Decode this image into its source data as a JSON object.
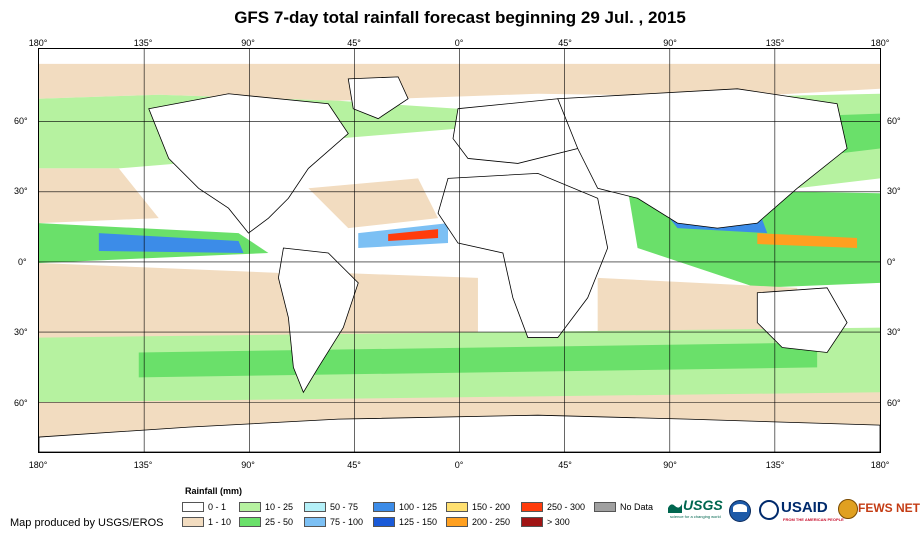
{
  "title": "GFS 7-day total rainfall forecast beginning 29 Jul. , 2015",
  "lon_labels": [
    "180°",
    "135°",
    "90°",
    "45°",
    "0°",
    "45°",
    "90°",
    "135°",
    "180°"
  ],
  "lat_labels": [
    "60°",
    "30°",
    "0°",
    "30°",
    "60°"
  ],
  "legend": {
    "title": "Rainfall (mm)",
    "items": [
      {
        "label": "0 - 1",
        "color": "#ffffff"
      },
      {
        "label": "1 - 10",
        "color": "#f2dcc0"
      },
      {
        "label": "10 - 25",
        "color": "#b6f2a0"
      },
      {
        "label": "25 - 50",
        "color": "#6ae06a"
      },
      {
        "label": "50 - 75",
        "color": "#b4f0f8"
      },
      {
        "label": "75 - 100",
        "color": "#7cc0f4"
      },
      {
        "label": "100 - 125",
        "color": "#3c8ce8"
      },
      {
        "label": "125 - 150",
        "color": "#1a5ad8"
      },
      {
        "label": "150 - 200",
        "color": "#ffe070"
      },
      {
        "label": "200 - 250",
        "color": "#ffa020"
      },
      {
        "label": "250 - 300",
        "color": "#ff3c0c"
      },
      {
        "label": "> 300",
        "color": "#a01414"
      },
      {
        "label": "No Data",
        "color": "#a0a0a0"
      }
    ]
  },
  "credit": "Map produced by USGS/EROS",
  "logos": {
    "usgs": "USGS",
    "usgs_tagline": "science for a changing world",
    "usaid": "USAID",
    "usaid_tagline": "FROM THE AMERICAN PEOPLE",
    "fewsnet": "FEWS NET"
  }
}
